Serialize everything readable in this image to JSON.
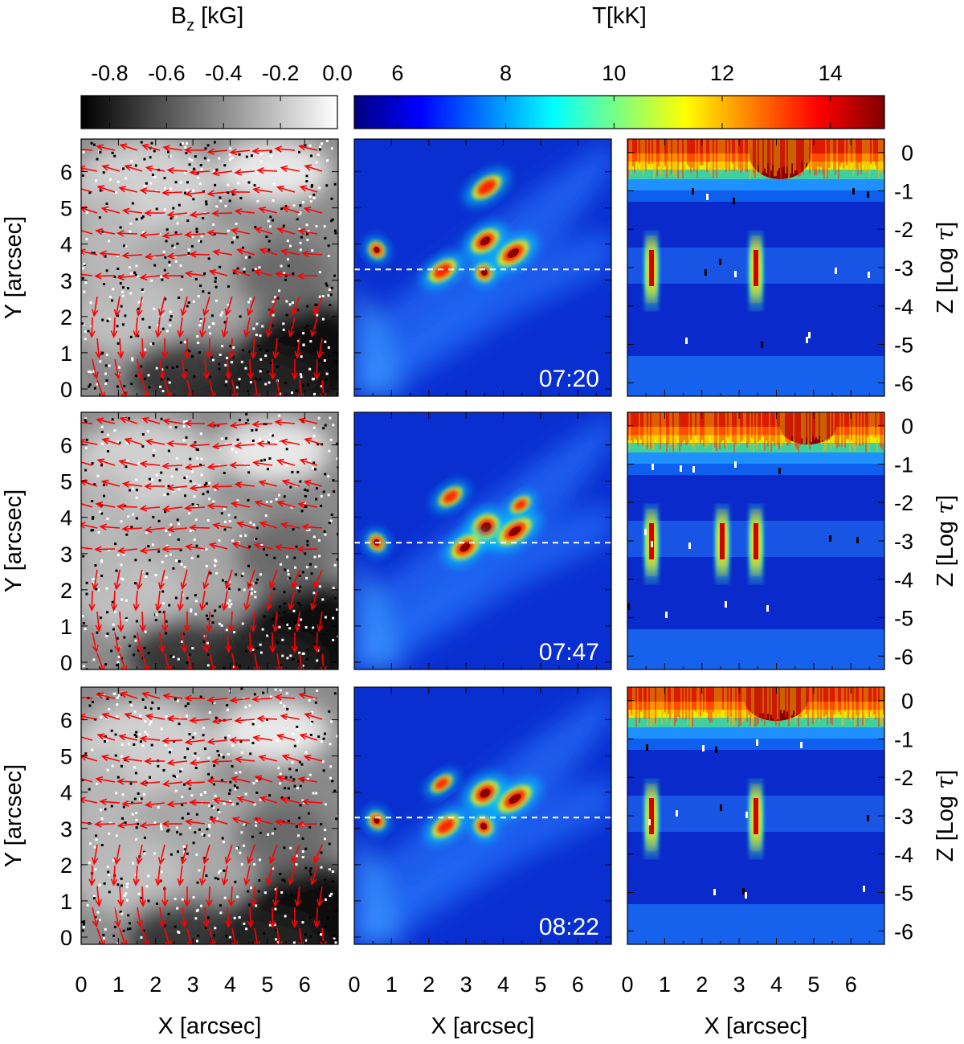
{
  "colorbars": {
    "bz": {
      "title": "B",
      "title_sub": "z",
      "title_unit": "[kG]",
      "ticks": [
        "-0.8",
        "-0.6",
        "-0.4",
        "-0.2",
        "0.0"
      ],
      "tick_values": [
        -0.8,
        -0.6,
        -0.4,
        -0.2,
        0.0
      ],
      "range": [
        -0.9,
        0.0
      ],
      "colormap": "grayscale"
    },
    "temp": {
      "title": "T[kK]",
      "ticks": [
        "6",
        "8",
        "10",
        "12",
        "14"
      ],
      "tick_values": [
        6,
        8,
        10,
        12,
        14
      ],
      "range": [
        5.2,
        15.0
      ],
      "colormap": "jet",
      "colors": [
        "#00007f",
        "#0000ff",
        "#007fff",
        "#00ffff",
        "#7fff7f",
        "#ffff00",
        "#ff7f00",
        "#ff0000",
        "#7f0000"
      ]
    }
  },
  "rows": [
    {
      "time": "07:20",
      "cut_y_arcsec": 3.3
    },
    {
      "time": "07:47",
      "cut_y_arcsec": 3.3
    },
    {
      "time": "08:22",
      "cut_y_arcsec": 3.3
    }
  ],
  "axes": {
    "x_ticks": [
      "0",
      "1",
      "2",
      "3",
      "4",
      "5",
      "6"
    ],
    "x_tick_values": [
      0,
      1,
      2,
      3,
      4,
      5,
      6
    ],
    "x_range": [
      0,
      6.9
    ],
    "y_ticks": [
      "0",
      "1",
      "2",
      "3",
      "4",
      "5",
      "6"
    ],
    "y_tick_values": [
      0,
      1,
      2,
      3,
      4,
      5,
      6
    ],
    "y_range": [
      -0.2,
      6.9
    ],
    "z_ticks": [
      "0",
      "-1",
      "-2",
      "-3",
      "-4",
      "-5",
      "-6"
    ],
    "z_tick_values": [
      0,
      -1,
      -2,
      -3,
      -4,
      -5,
      -6
    ],
    "z_range": [
      0.35,
      -6.35
    ],
    "x_label": "X [arcsec]",
    "y_label": "Y [arcsec]",
    "z_label_prefix": "Z [Log ",
    "z_label_symbol": "τ",
    "z_label_suffix": "]"
  },
  "colors": {
    "arrows": "#ff0000",
    "background": "#0a2fd0",
    "text": "#000000",
    "timestamp": "#ffffff",
    "cut_line": "#ffffff"
  }
}
